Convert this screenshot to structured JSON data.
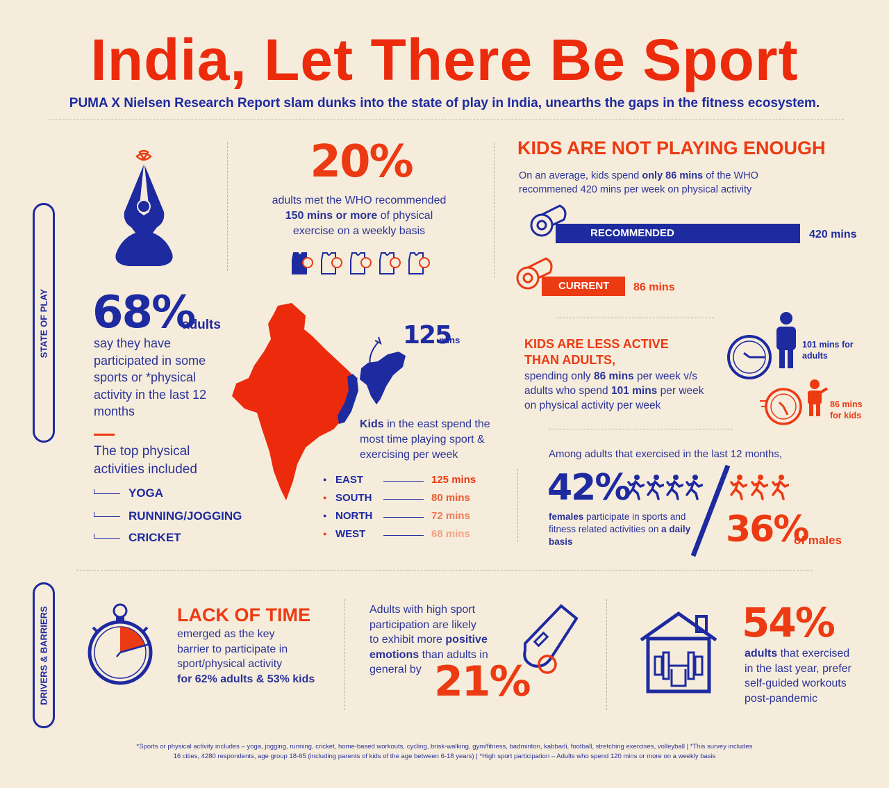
{
  "header": {
    "title": "India, Let There Be Sport",
    "subtitle": "PUMA X Nielsen Research Report slam dunks into the state of play in India, unearths the gaps in the fitness ecosystem."
  },
  "side_labels": {
    "state_of_play": "STATE OF PLAY",
    "drivers": "DRIVERS & BARRIERS"
  },
  "stat68": {
    "value": "68%",
    "unit": "adults",
    "text": "say they have participated in some sports or *physical activity in the last 12 months"
  },
  "activities": {
    "heading": "The top physical activities included",
    "items": [
      "YOGA",
      "RUNNING/JOGGING",
      "CRICKET"
    ]
  },
  "stat20": {
    "value": "20%",
    "line1": "adults met the WHO recommended",
    "line2_bold": "150 mins or more",
    "line2_rest": " of physical",
    "line3": "exercise on a weekly basis",
    "jerseys_total": 5,
    "jerseys_filled": 1
  },
  "map": {
    "east_value": "125",
    "east_unit": "mins",
    "caption_bold": "Kids",
    "caption_rest": " in the east spend the most time playing sport & exercising per week"
  },
  "regions": [
    {
      "name": "EAST",
      "mins": "125 mins",
      "color": "#ec3a12"
    },
    {
      "name": "SOUTH",
      "mins": "80 mins",
      "color": "#ee5a2e"
    },
    {
      "name": "NORTH",
      "mins": "72 mins",
      "color": "#f07b55"
    },
    {
      "name": "WEST",
      "mins": "68 mins",
      "color": "#f3a384"
    }
  ],
  "kids_not_playing": {
    "heading": "KIDS ARE NOT PLAYING ENOUGH",
    "t1": "On an average, kids spend ",
    "t2_bold": "only 86 mins",
    "t3": " of the WHO",
    "t4": "recommened 420 mins per week on physical activity",
    "recommended_label": "RECOMMENDED",
    "recommended_value": "420 mins",
    "recommended_mins": 420,
    "current_label": "CURRENT",
    "current_value": "86 mins",
    "current_mins": 86
  },
  "kids_less_active": {
    "heading1": "KIDS ARE LESS ACTIVE",
    "heading2": "THAN ADULTS,",
    "p1": "spending only ",
    "p1_bold": "86 mins",
    "p1_rest": " per week v/s",
    "p2": "adults who spend ",
    "p2_bold": "101 mins",
    "p2_rest": " per week",
    "p3": "on physical activity per week",
    "adults_label": "101 mins for adults",
    "kids_label": "86 mins for kids"
  },
  "gender": {
    "intro": "Among adults that exercised in the last 12 months,",
    "female_value": "42%",
    "female_text_bold": "females",
    "female_text": " participate in sports and fitness related activities on ",
    "female_text_bold2": "a daily basis",
    "male_value": "36%",
    "male_text": "of males"
  },
  "lack_of_time": {
    "heading": "LACK OF TIME",
    "t1": "emerged as the key",
    "t2": "barrier to participate in",
    "t3": "sport/physical activity",
    "t4": "for 62% adults & 53% kids"
  },
  "emotions": {
    "t1": "Adults with high sport",
    "t2": "participation are likely",
    "t3a": "to exhibit more ",
    "t3b": "positive",
    "t4a": "emotions",
    "t4b": " than adults in",
    "t5": "general by",
    "value": "21%"
  },
  "selfguided": {
    "value": "54%",
    "t1_bold": "adults",
    "t1": " that exercised",
    "t2": "in the last year, prefer",
    "t3": "self-guided workouts",
    "t4": "post-pandemic"
  },
  "footnote": {
    "line1": "*Sports or physical activity includes – yoga, jogging, running, cricket, home-based workouts, cycling, brisk-walking, gym/fitness, badminton, kabbadi, football, stretching exercises, volleyball  |  *This survey includes",
    "line2": "16 cities, 4280 respondents, age group 18-65 (including parents of kids of the age between 6-18 years)  |  *High sport participation – Adults who spend 120 mins or more on a weekly basis"
  }
}
